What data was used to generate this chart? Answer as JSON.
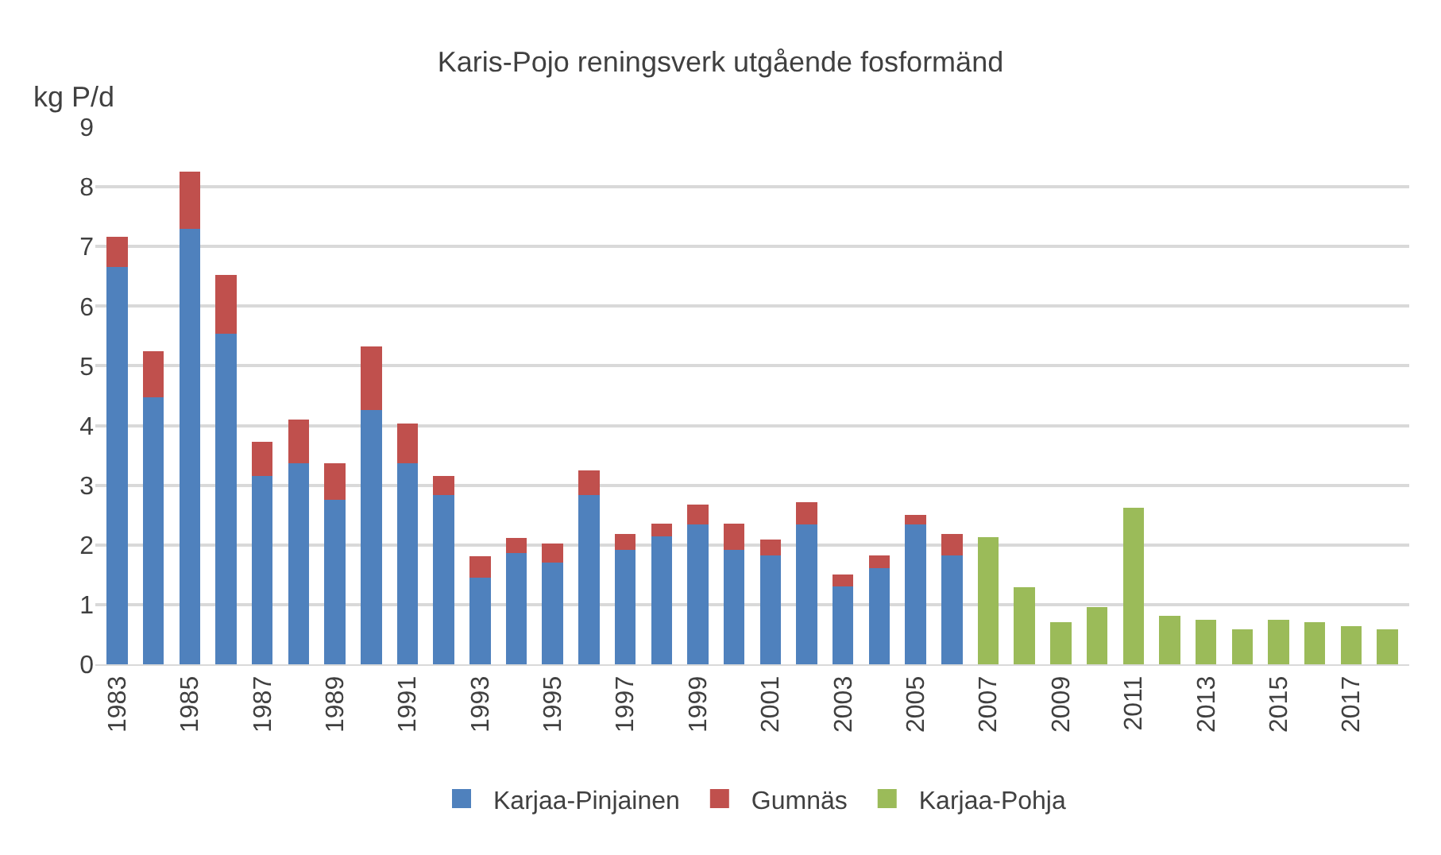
{
  "chart_data": {
    "type": "bar",
    "title": "Karis-Pojo reningsverk utgående fosformänd",
    "ylabel": "kg P/d",
    "categories": [
      "1983",
      null,
      "1985",
      null,
      "1987",
      null,
      "1989",
      null,
      "1991",
      null,
      "1993",
      null,
      "1995",
      null,
      "1997",
      null,
      "1999",
      null,
      "2001",
      null,
      "2003",
      null,
      "2005",
      null,
      "2007",
      null,
      "2009",
      null,
      "2011",
      null,
      "2013",
      null,
      "2015",
      null,
      "2017",
      null
    ],
    "stacked": true,
    "series": [
      {
        "name": "Karjaa-Pinjainen",
        "color": "#4f81bd",
        "values": [
          6.66,
          4.48,
          7.3,
          5.54,
          3.15,
          3.37,
          2.76,
          4.26,
          3.37,
          2.84,
          1.45,
          1.87,
          1.71,
          2.84,
          1.92,
          2.14,
          2.34,
          1.92,
          1.82,
          2.34,
          1.3,
          1.61,
          2.34,
          1.82,
          null,
          null,
          null,
          null,
          null,
          null,
          null,
          null,
          null,
          null,
          null,
          null
        ]
      },
      {
        "name": "Gumnäs",
        "color": "#c0504d",
        "values": [
          0.5,
          0.76,
          0.95,
          0.98,
          0.58,
          0.73,
          0.61,
          1.06,
          0.67,
          0.31,
          0.36,
          0.25,
          0.32,
          0.41,
          0.27,
          0.22,
          0.33,
          0.44,
          0.27,
          0.38,
          0.2,
          0.21,
          0.16,
          0.37,
          null,
          null,
          null,
          null,
          null,
          null,
          null,
          null,
          null,
          null,
          null,
          null
        ]
      },
      {
        "name": "Karjaa-Pohja",
        "color": "#9bbb59",
        "values": [
          null,
          null,
          null,
          null,
          null,
          null,
          null,
          null,
          null,
          null,
          null,
          null,
          null,
          null,
          null,
          null,
          null,
          null,
          null,
          null,
          null,
          null,
          null,
          null,
          2.13,
          1.29,
          0.7,
          0.96,
          2.62,
          0.81,
          0.75,
          0.59,
          0.75,
          0.7,
          0.64,
          0.59
        ]
      }
    ],
    "ylim": [
      0,
      9
    ],
    "yticks": [
      0,
      1,
      2,
      3,
      4,
      5,
      6,
      7,
      8,
      9
    ],
    "grid": "y",
    "legend": "bottom"
  }
}
